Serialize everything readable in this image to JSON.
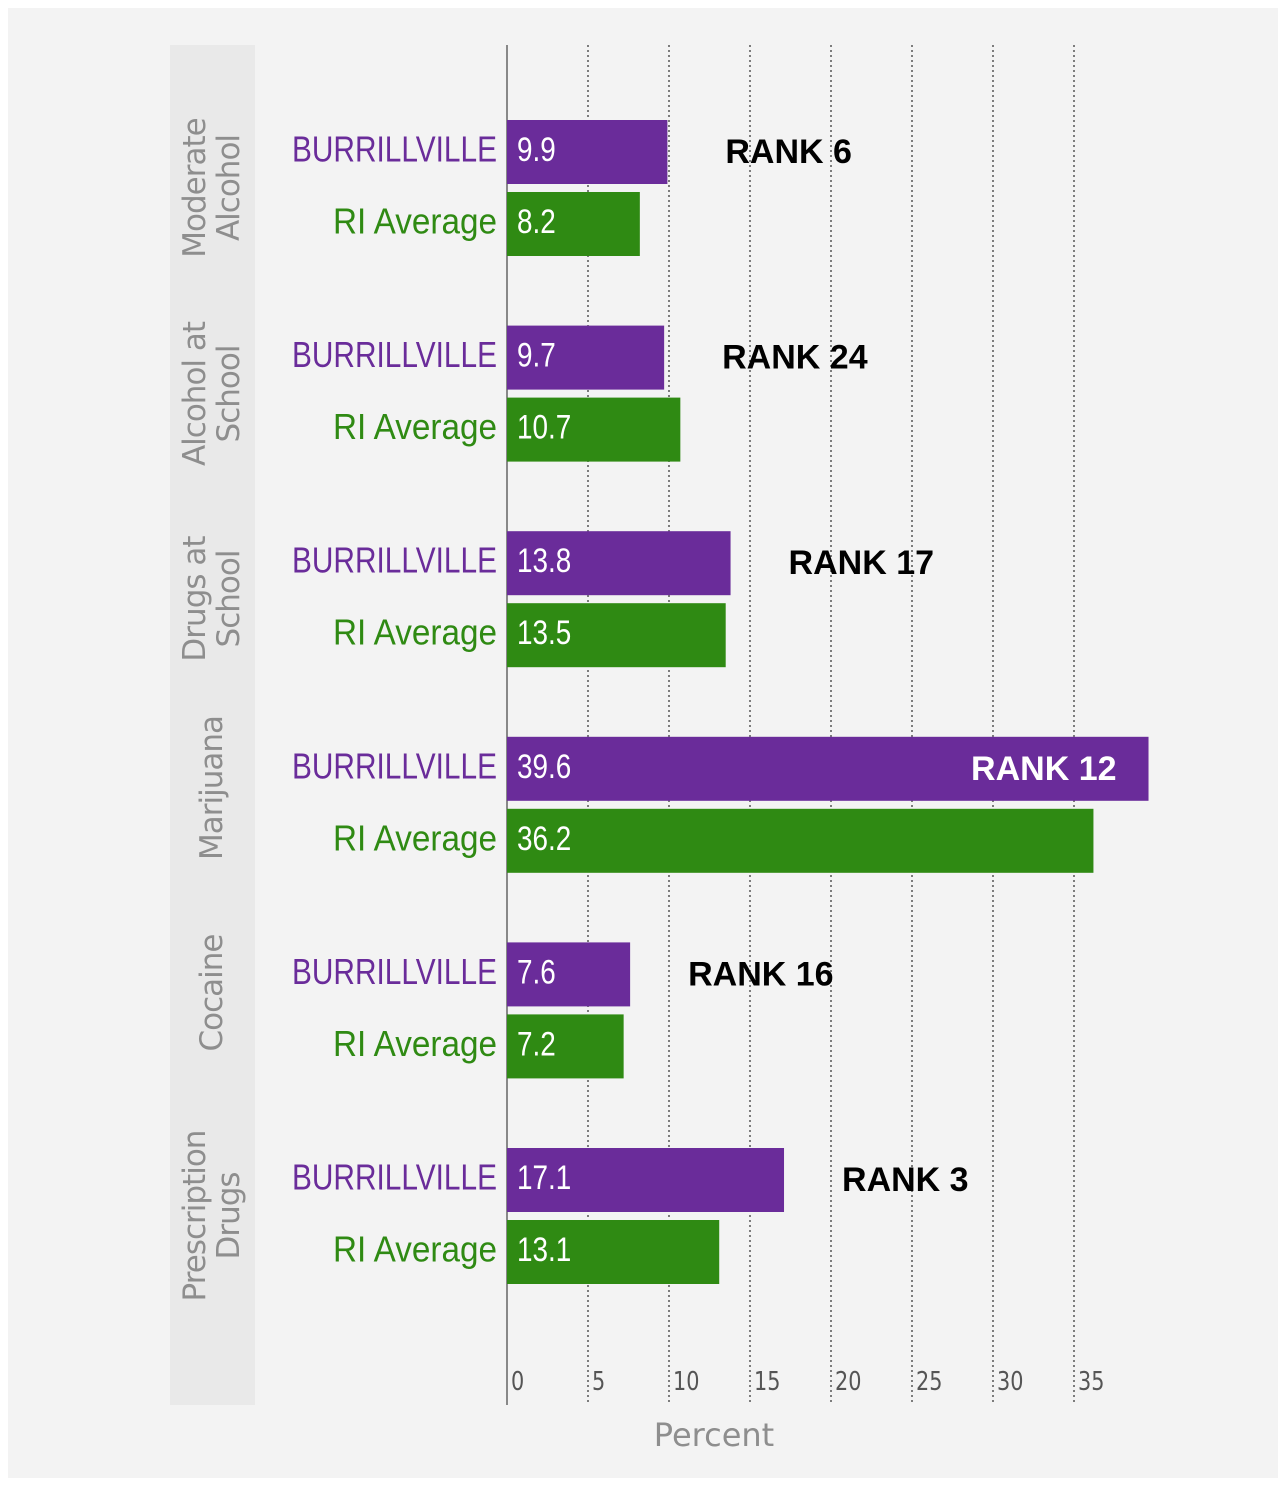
{
  "chart_data": {
    "type": "bar",
    "orientation": "horizontal",
    "x_label": "Percent",
    "categories": [
      "Moderate Alcohol",
      "Alcohol at School",
      "Drugs at School",
      "Marijuana",
      "Cocaine",
      "Prescription Drugs"
    ],
    "series": [
      {
        "name": "BURRILLVILLE",
        "color": "#6a2c9a",
        "values": [
          9.9,
          9.7,
          13.8,
          39.6,
          7.6,
          17.1
        ]
      },
      {
        "name": "RI Average",
        "color": "#2f8a13",
        "values": [
          8.2,
          10.7,
          13.5,
          36.2,
          7.2,
          13.1
        ]
      }
    ],
    "annotations": [
      "RANK 6",
      "RANK 24",
      "RANK 17",
      "RANK 12",
      "RANK 16",
      "RANK 3"
    ],
    "xlim": [
      0,
      40
    ],
    "xticks": [
      0,
      5,
      10,
      15,
      20,
      25,
      30,
      35
    ],
    "grid": true
  }
}
